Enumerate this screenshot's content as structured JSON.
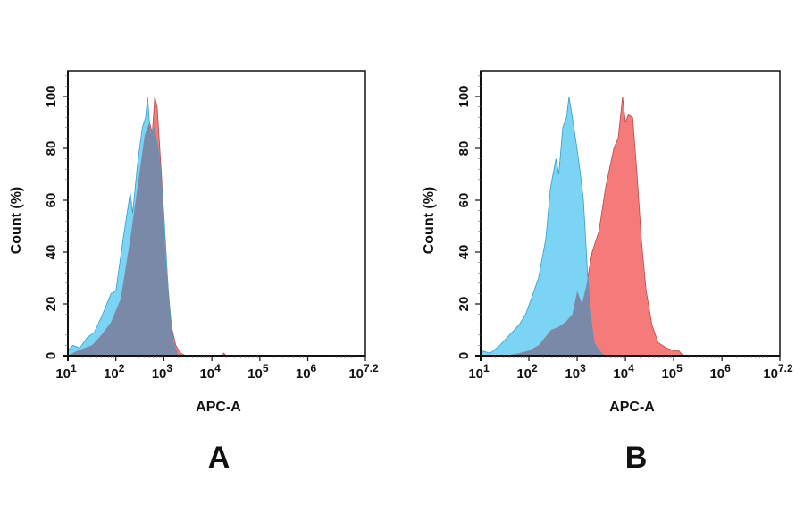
{
  "colors": {
    "red": "#f57b7b",
    "blue": "#7bd4f4",
    "overlap": "#7b89a8",
    "stroke_red": "#b44c4c",
    "stroke_blue": "#3a9cc4"
  },
  "chart_data": [
    {
      "type": "area",
      "panel_label": "A",
      "xlabel": "APC-A",
      "ylabel": "Count (%)",
      "xscale": "log",
      "xlim_log10": [
        1,
        7.2
      ],
      "ylim": [
        0,
        110
      ],
      "xticks": [
        {
          "base": "10",
          "exp": "1"
        },
        {
          "base": "10",
          "exp": "2"
        },
        {
          "base": "10",
          "exp": "3"
        },
        {
          "base": "10",
          "exp": "4"
        },
        {
          "base": "10",
          "exp": "5"
        },
        {
          "base": "10",
          "exp": "6"
        },
        {
          "base": "10",
          "exp": "7.2"
        }
      ],
      "yticks": [
        "0",
        "20",
        "40",
        "60",
        "80",
        "100"
      ],
      "series": [
        {
          "color": "red",
          "x_log10": [
            1.0,
            1.2,
            1.35,
            1.5,
            1.7,
            1.9,
            2.1,
            2.3,
            2.45,
            2.6,
            2.7,
            2.76,
            2.81,
            2.86,
            2.95,
            3.05,
            3.15,
            3.25,
            3.35,
            3.45,
            4.2,
            4.25,
            4.3
          ],
          "y": [
            0,
            2,
            3,
            4,
            8,
            13,
            22,
            45,
            65,
            85,
            90,
            86,
            100,
            96,
            70,
            35,
            12,
            4,
            1,
            0,
            0,
            1,
            0
          ]
        },
        {
          "color": "blue",
          "x_log10": [
            1.0,
            1.1,
            1.25,
            1.4,
            1.55,
            1.7,
            1.9,
            2.0,
            2.15,
            2.3,
            2.35,
            2.45,
            2.55,
            2.62,
            2.66,
            2.72,
            2.8,
            2.9,
            3.0,
            3.1,
            3.2,
            3.3
          ],
          "y": [
            2,
            4,
            3,
            7,
            9,
            15,
            24,
            25,
            45,
            63,
            55,
            74,
            88,
            92,
            100,
            85,
            88,
            78,
            55,
            22,
            5,
            0
          ]
        }
      ]
    },
    {
      "type": "area",
      "panel_label": "B",
      "xlabel": "APC-A",
      "ylabel": "Count (%)",
      "xscale": "log",
      "xlim_log10": [
        1,
        7.2
      ],
      "ylim": [
        0,
        110
      ],
      "xticks": [
        {
          "base": "10",
          "exp": "1"
        },
        {
          "base": "10",
          "exp": "2"
        },
        {
          "base": "10",
          "exp": "3"
        },
        {
          "base": "10",
          "exp": "4"
        },
        {
          "base": "10",
          "exp": "5"
        },
        {
          "base": "10",
          "exp": "6"
        },
        {
          "base": "10",
          "exp": "7.2"
        }
      ],
      "yticks": [
        "0",
        "20",
        "40",
        "60",
        "80",
        "100"
      ],
      "series": [
        {
          "color": "red",
          "x_log10": [
            1.5,
            1.8,
            2.0,
            2.2,
            2.46,
            2.6,
            2.76,
            2.9,
            3.0,
            3.1,
            3.2,
            3.31,
            3.45,
            3.59,
            3.76,
            3.85,
            3.94,
            4.0,
            4.06,
            4.15,
            4.24,
            4.33,
            4.43,
            4.55,
            4.68,
            4.85,
            5.0,
            5.1,
            5.2
          ],
          "y": [
            0,
            1,
            2,
            4,
            10,
            11,
            13,
            16,
            25,
            20,
            28,
            40,
            48,
            65,
            80,
            84,
            100,
            90,
            93,
            92,
            70,
            45,
            25,
            12,
            5,
            3,
            2,
            2,
            0
          ]
        },
        {
          "color": "blue",
          "x_log10": [
            1.0,
            1.2,
            1.4,
            1.6,
            1.8,
            1.93,
            2.05,
            2.2,
            2.35,
            2.45,
            2.56,
            2.62,
            2.7,
            2.78,
            2.83,
            2.9,
            2.98,
            3.07,
            3.13,
            3.22,
            3.3,
            3.35,
            3.45,
            3.55
          ],
          "y": [
            2,
            1,
            4,
            8,
            12,
            16,
            22,
            30,
            45,
            65,
            76,
            70,
            88,
            92,
            100,
            92,
            82,
            70,
            60,
            30,
            12,
            5,
            2,
            0
          ]
        }
      ]
    }
  ]
}
